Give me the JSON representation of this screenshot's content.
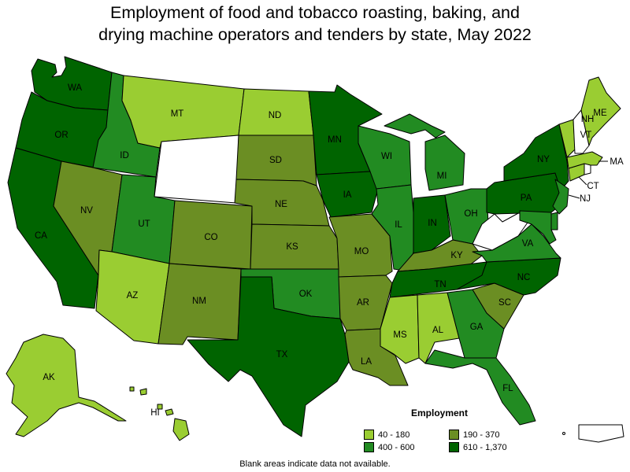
{
  "title_line1": "Employment of food and tobacco roasting, baking, and",
  "title_line2": "drying machine operators and tenders by state, May 2022",
  "legend": {
    "title": "Employment",
    "bins": [
      {
        "label": "40 - 180",
        "color": "#9acd32"
      },
      {
        "label": "190 - 370",
        "color": "#6b8e23"
      },
      {
        "label": "400 - 600",
        "color": "#228b22"
      },
      {
        "label": "610 - 1,370",
        "color": "#006400"
      }
    ]
  },
  "note": "Blank areas indicate data not available.",
  "states": {
    "WA": {
      "label": "WA",
      "bin": 3
    },
    "OR": {
      "label": "OR",
      "bin": 3
    },
    "CA": {
      "label": "CA",
      "bin": 3
    },
    "ID": {
      "label": "ID",
      "bin": 2
    },
    "NV": {
      "label": "NV",
      "bin": 1
    },
    "MT": {
      "label": "MT",
      "bin": 0
    },
    "WY": {
      "label": "",
      "bin": null
    },
    "UT": {
      "label": "UT",
      "bin": 2
    },
    "AZ": {
      "label": "AZ",
      "bin": 0
    },
    "CO": {
      "label": "CO",
      "bin": 1
    },
    "NM": {
      "label": "NM",
      "bin": 1
    },
    "ND": {
      "label": "ND",
      "bin": 0
    },
    "SD": {
      "label": "SD",
      "bin": 1
    },
    "NE": {
      "label": "NE",
      "bin": 1
    },
    "KS": {
      "label": "KS",
      "bin": 1
    },
    "OK": {
      "label": "OK",
      "bin": 2
    },
    "TX": {
      "label": "TX",
      "bin": 3
    },
    "MN": {
      "label": "MN",
      "bin": 3
    },
    "IA": {
      "label": "IA",
      "bin": 3
    },
    "MO": {
      "label": "MO",
      "bin": 1
    },
    "AR": {
      "label": "AR",
      "bin": 1
    },
    "LA": {
      "label": "LA",
      "bin": 1
    },
    "WI": {
      "label": "WI",
      "bin": 2
    },
    "IL": {
      "label": "IL",
      "bin": 2
    },
    "MI": {
      "label": "MI",
      "bin": 2
    },
    "IN": {
      "label": "IN",
      "bin": 3
    },
    "OH": {
      "label": "OH",
      "bin": 2
    },
    "KY": {
      "label": "KY",
      "bin": 1
    },
    "TN": {
      "label": "TN",
      "bin": 3
    },
    "MS": {
      "label": "MS",
      "bin": 0
    },
    "AL": {
      "label": "AL",
      "bin": 0
    },
    "GA": {
      "label": "GA",
      "bin": 2
    },
    "FL": {
      "label": "FL",
      "bin": 2
    },
    "SC": {
      "label": "SC",
      "bin": 1
    },
    "NC": {
      "label": "NC",
      "bin": 3
    },
    "VA": {
      "label": "VA",
      "bin": 2
    },
    "WV": {
      "label": "",
      "bin": null
    },
    "PA": {
      "label": "PA",
      "bin": 3
    },
    "NY": {
      "label": "NY",
      "bin": 3
    },
    "NJ": {
      "label": "NJ",
      "bin": 2
    },
    "DE": {
      "label": "",
      "bin": 2
    },
    "MD": {
      "label": "",
      "bin": 2
    },
    "CT": {
      "label": "CT",
      "bin": 0
    },
    "RI": {
      "label": "",
      "bin": null
    },
    "MA": {
      "label": "MA",
      "bin": 0
    },
    "VT": {
      "label": "VT",
      "bin": 0
    },
    "NH": {
      "label": "NH",
      "bin": null
    },
    "ME": {
      "label": "ME",
      "bin": 0
    },
    "AK": {
      "label": "AK",
      "bin": 0
    },
    "HI": {
      "label": "HI",
      "bin": 0
    },
    "PR": {
      "label": "",
      "bin": null
    }
  }
}
